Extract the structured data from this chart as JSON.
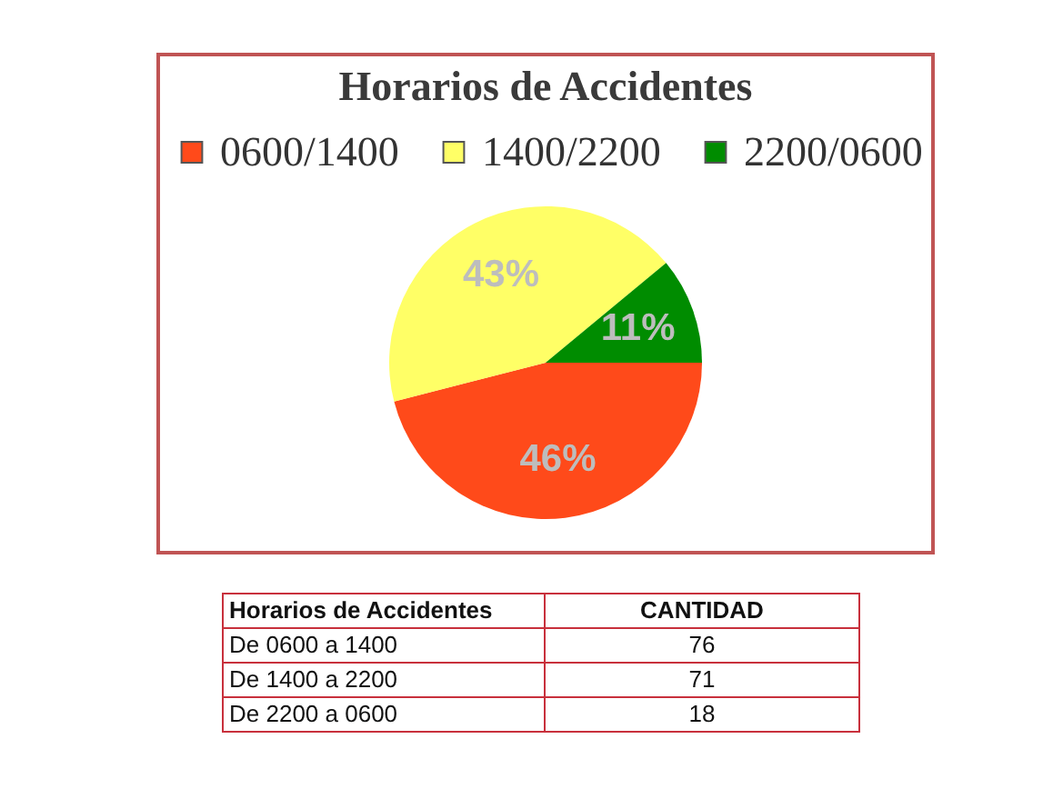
{
  "chart_data": [
    {
      "type": "pie",
      "title": "Horarios de Accidentes",
      "categories": [
        "0600/1400",
        "1400/2200",
        "2200/0600"
      ],
      "values": [
        46,
        43,
        11
      ],
      "colors": [
        "#ff4a1a",
        "#ffff66",
        "#008c00"
      ],
      "value_labels": [
        "46%",
        "43%",
        "11%"
      ],
      "legend": "top"
    },
    {
      "type": "other",
      "categories": [
        "De 0600 a 1400",
        "De 1400 a 2200",
        "De 2200 a 0600"
      ],
      "values": [
        76,
        71,
        18
      ],
      "data_labels": true,
      "annotations": [
        "Horarios de Accidentes",
        "CANTIDAD"
      ]
    }
  ]
}
